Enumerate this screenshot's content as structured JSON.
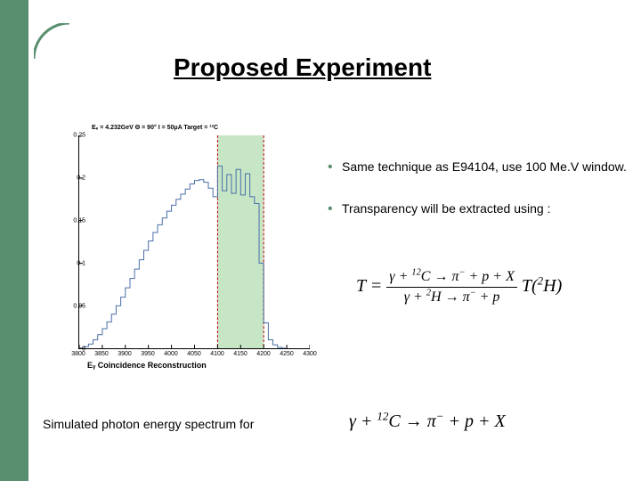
{
  "title": "Proposed Experiment",
  "bullets": {
    "b1": "Same technique as E94104, use 100 Me.V window.",
    "b2": "Transparency will be extracted using :"
  },
  "caption": "Simulated photon energy spectrum for",
  "chart": {
    "type": "histogram-with-band",
    "header": "Eₑ = 4.232GeV   Θ = 90°   I = 50μA   Target = ¹²C",
    "x_label": "Eᵧ  Coincidence  Reconstruction",
    "ylim": [
      0,
      0.25
    ],
    "yticks": [
      0,
      0.05,
      0.1,
      0.15,
      0.2,
      0.25
    ],
    "xlim": [
      3800,
      4300
    ],
    "xticks": [
      3800,
      3850,
      3900,
      3950,
      4000,
      4050,
      4100,
      4150,
      4200,
      4250,
      4300
    ],
    "highlight_band": {
      "xmin": 4100,
      "xmax": 4200,
      "fill": "#a7d9a7",
      "opacity": 0.65
    },
    "red_lines_x": [
      4100,
      4200
    ],
    "red_line_color": "#bb0000",
    "background_color": "#ffffff",
    "axis_color": "#000000",
    "axis_fontsize": 7,
    "histogram": {
      "color": "#4a6fa8",
      "x": [
        3810,
        3820,
        3830,
        3840,
        3850,
        3860,
        3870,
        3880,
        3890,
        3900,
        3910,
        3920,
        3930,
        3940,
        3950,
        3960,
        3970,
        3980,
        3990,
        4000,
        4010,
        4020,
        4030,
        4040,
        4050,
        4060,
        4070,
        4080,
        4090,
        4100,
        4110,
        4120,
        4130,
        4140,
        4150,
        4160,
        4170,
        4180,
        4190,
        4200,
        4210,
        4220,
        4230,
        4240
      ],
      "y": [
        0.002,
        0.005,
        0.01,
        0.016,
        0.023,
        0.031,
        0.04,
        0.05,
        0.06,
        0.071,
        0.082,
        0.093,
        0.104,
        0.115,
        0.126,
        0.136,
        0.145,
        0.153,
        0.161,
        0.168,
        0.175,
        0.181,
        0.187,
        0.193,
        0.197,
        0.198,
        0.195,
        0.188,
        0.178,
        0.214,
        0.185,
        0.204,
        0.182,
        0.21,
        0.18,
        0.205,
        0.178,
        0.17,
        0.1,
        0.03,
        0.01,
        0.004,
        0.001,
        0
      ]
    }
  },
  "formula": {
    "prefix": "T =",
    "num_parts": [
      "γ + ",
      "12",
      "C → π",
      "−",
      " + p + X"
    ],
    "den_parts": [
      "γ + ",
      "2",
      "H → π",
      "−",
      " + p"
    ],
    "suffix_parts": [
      "T(",
      "2",
      "H)"
    ]
  },
  "caption_formula": {
    "parts": [
      "γ + ",
      "12",
      "C → π",
      "−",
      " + p + X"
    ]
  }
}
